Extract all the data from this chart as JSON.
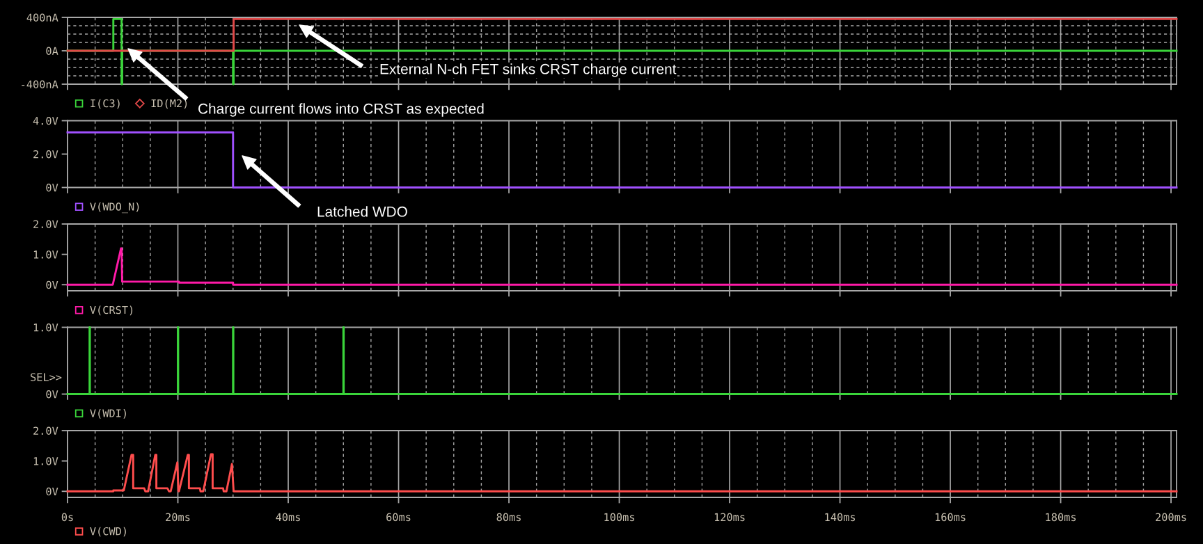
{
  "chart_data": [
    {
      "type": "line",
      "xlim": [
        0,
        201
      ],
      "ylim": [
        -400,
        400
      ],
      "grid": true,
      "legend": "bottom",
      "tick_labels": "y",
      "yticks": [
        {
          "value": -400,
          "label": "-400nA"
        },
        {
          "value": -300,
          "label": null
        },
        {
          "value": -200,
          "label": null
        },
        {
          "value": -100,
          "label": null
        },
        {
          "value": 0,
          "label": "0A"
        },
        {
          "value": 100,
          "label": null
        },
        {
          "value": 200,
          "label": null
        },
        {
          "value": 300,
          "label": null
        },
        {
          "value": 400,
          "label": "400nA"
        }
      ],
      "series": [
        {
          "name": "I(C3)",
          "color": "#3ad43a",
          "x": [
            0,
            8.3,
            8.3,
            9.8,
            9.8,
            9.9,
            9.9,
            30,
            30,
            30.1,
            30.1,
            201
          ],
          "values": [
            0,
            0,
            380,
            380,
            -400,
            -400,
            0,
            0,
            -400,
            -400,
            0,
            0
          ]
        },
        {
          "name": "ID(M2)",
          "color": "#e04848",
          "x": [
            0,
            15,
            30.1,
            30.1,
            60,
            100,
            150,
            201
          ],
          "values": [
            0,
            0,
            0,
            380,
            380,
            380,
            380,
            380
          ]
        }
      ],
      "annotations": [
        "Charge current flows into CRST as expected",
        "External N-ch FET sinks CRST charge current"
      ]
    },
    {
      "type": "line",
      "xlim": [
        0,
        201
      ],
      "ylim": [
        0,
        4
      ],
      "grid": "x",
      "legend": "bottom",
      "tick_labels": "y",
      "yticks": [
        {
          "value": 0,
          "label": "0V"
        },
        {
          "value": 2,
          "label": "2.0V"
        },
        {
          "value": 4,
          "label": "4.0V"
        }
      ],
      "series": [
        {
          "name": "V(WDO_N)",
          "color": "#a050ff",
          "x": [
            0,
            15,
            30,
            30,
            60,
            100,
            150,
            201
          ],
          "values": [
            3.3,
            3.3,
            3.3,
            0,
            0,
            0,
            0,
            0
          ]
        }
      ],
      "annotations": [
        "Latched WDO"
      ]
    },
    {
      "type": "line",
      "xlim": [
        0,
        201
      ],
      "ylim": [
        -0.2,
        2
      ],
      "grid": "x",
      "legend": "bottom",
      "tick_labels": "y",
      "yticks": [
        {
          "value": 0,
          "label": "0V"
        },
        {
          "value": 1,
          "label": "1.0V"
        },
        {
          "value": 2,
          "label": "2.0V"
        }
      ],
      "series": [
        {
          "name": "V(CRST)",
          "color": "#ff1aa8",
          "x": [
            0,
            8.2,
            9.7,
            9.8,
            9.9,
            20.2,
            20.2,
            30,
            30,
            201
          ],
          "values": [
            0,
            0,
            1.2,
            1.2,
            0.1,
            0.1,
            0.07,
            0.07,
            0,
            0
          ]
        }
      ]
    },
    {
      "type": "line",
      "xlim": [
        0,
        201
      ],
      "ylim": [
        0,
        1
      ],
      "grid": "x",
      "legend": "bottom",
      "tick_labels": "y",
      "yticks": [
        {
          "value": 0,
          "label": "0V"
        },
        {
          "value": 1,
          "label": "1.0V"
        }
      ],
      "series": [
        {
          "name": "V(WDI)",
          "color": "#3ad43a",
          "x": [
            0,
            4,
            4,
            4.05,
            4.05,
            20,
            20,
            20.05,
            20.05,
            30,
            30,
            30.05,
            30.05,
            50,
            50,
            50.05,
            50.05,
            201
          ],
          "values": [
            0,
            0,
            1,
            1,
            0,
            0,
            1,
            1,
            0,
            0,
            1,
            1,
            0,
            0,
            1,
            1,
            0,
            0
          ]
        }
      ],
      "annotations": [
        "SEL>>"
      ]
    },
    {
      "type": "line",
      "xlim": [
        0,
        201
      ],
      "ylim": [
        -0.2,
        2
      ],
      "grid": "x",
      "legend": "bottom",
      "xticks": [
        {
          "value": 0,
          "label": "0s"
        },
        {
          "value": 5,
          "label": null
        },
        {
          "value": 10,
          "label": null
        },
        {
          "value": 15,
          "label": null
        },
        {
          "value": 20,
          "label": "20ms"
        },
        {
          "value": 25,
          "label": null
        },
        {
          "value": 30,
          "label": null
        },
        {
          "value": 35,
          "label": null
        },
        {
          "value": 40,
          "label": "40ms"
        },
        {
          "value": 45,
          "label": null
        },
        {
          "value": 50,
          "label": null
        },
        {
          "value": 55,
          "label": null
        },
        {
          "value": 60,
          "label": "60ms"
        },
        {
          "value": 65,
          "label": null
        },
        {
          "value": 70,
          "label": null
        },
        {
          "value": 75,
          "label": null
        },
        {
          "value": 80,
          "label": "80ms"
        },
        {
          "value": 85,
          "label": null
        },
        {
          "value": 90,
          "label": null
        },
        {
          "value": 95,
          "label": null
        },
        {
          "value": 100,
          "label": "100ms"
        },
        {
          "value": 105,
          "label": null
        },
        {
          "value": 110,
          "label": null
        },
        {
          "value": 115,
          "label": null
        },
        {
          "value": 120,
          "label": "120ms"
        },
        {
          "value": 125,
          "label": null
        },
        {
          "value": 130,
          "label": null
        },
        {
          "value": 135,
          "label": null
        },
        {
          "value": 140,
          "label": "140ms"
        },
        {
          "value": 145,
          "label": null
        },
        {
          "value": 150,
          "label": null
        },
        {
          "value": 155,
          "label": null
        },
        {
          "value": 160,
          "label": "160ms"
        },
        {
          "value": 165,
          "label": null
        },
        {
          "value": 170,
          "label": null
        },
        {
          "value": 175,
          "label": null
        },
        {
          "value": 180,
          "label": "180ms"
        },
        {
          "value": 185,
          "label": null
        },
        {
          "value": 190,
          "label": null
        },
        {
          "value": 195,
          "label": null
        },
        {
          "value": 200,
          "label": "200ms"
        }
      ],
      "yticks": [
        {
          "value": 0,
          "label": "0V"
        },
        {
          "value": 1,
          "label": "1.0V"
        },
        {
          "value": 2,
          "label": "2.0V"
        }
      ],
      "series": [
        {
          "name": "V(CWD)",
          "color": "#ff4d4d",
          "x": [
            0,
            8.3,
            8.3,
            10.2,
            11.6,
            11.9,
            11.9,
            13.9,
            14.1,
            14.6,
            15.9,
            16.1,
            16.1,
            18.1,
            18.4,
            18.7,
            19.9,
            20.1,
            20.2,
            21.8,
            22.0,
            22.0,
            24.0,
            24.1,
            24.6,
            26.0,
            26.3,
            26.3,
            28.2,
            28.3,
            28.8,
            29.8,
            30.1,
            201
          ],
          "values": [
            0,
            0,
            0.03,
            0.03,
            1.2,
            1.2,
            0.1,
            0.1,
            0,
            0,
            1.2,
            1.2,
            0.1,
            0.1,
            0,
            0,
            0.95,
            0,
            0,
            1.2,
            1.2,
            0.1,
            0.1,
            0,
            0,
            1.22,
            1.22,
            0.1,
            0.1,
            0,
            0,
            0.9,
            0,
            0
          ]
        }
      ]
    }
  ]
}
